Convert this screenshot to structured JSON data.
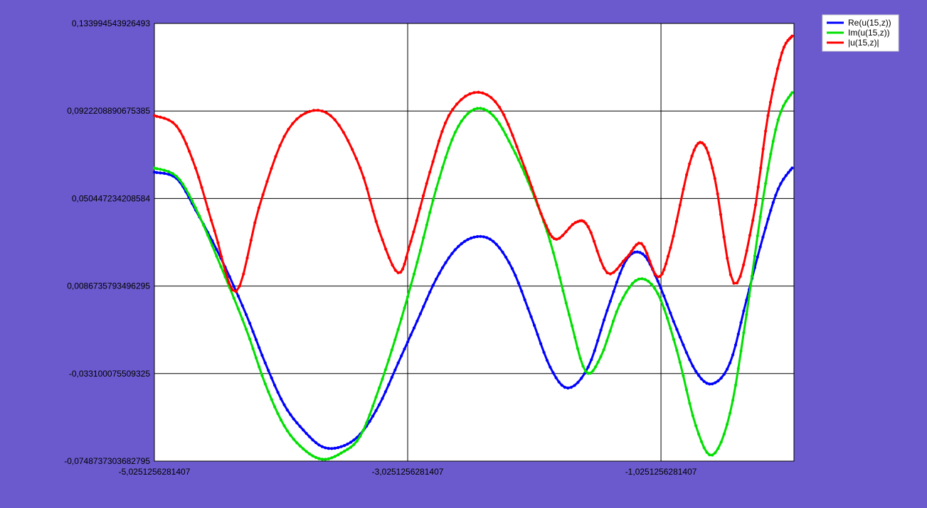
{
  "page": {
    "background": "#6a5acd"
  },
  "chart_data": {
    "type": "line",
    "title": "",
    "xlabel": "",
    "ylabel": "",
    "xlim": [
      -5.0251256281407,
      0.0248743718593
    ],
    "ylim": [
      -0.0748737303682795,
      0.133994543926493
    ],
    "x_ticks": [
      -5.0251256281407,
      -3.0251256281407,
      -1.0251256281407
    ],
    "x_tick_labels": [
      "-5,0251256281407",
      "-3,0251256281407",
      "-1,0251256281407"
    ],
    "y_ticks": [
      -0.0748737303682795,
      -0.033100075509325,
      0.0086735793496295,
      0.050447234208584,
      0.0922208890675385,
      0.133994543926493
    ],
    "y_tick_labels": [
      "-0,0748737303682795",
      "-0,033100075509325",
      "0,0086735793496295",
      "0,050447234208584",
      "0,0922208890675385",
      "0,133994543926493"
    ],
    "grid": true,
    "legend_position": "top-right",
    "plot_background": "#ffffff",
    "series": [
      {
        "name": "Re(u(15,z))",
        "color": "#0000ff",
        "points": [
          [
            -5.025,
            0.063
          ],
          [
            -4.85,
            0.06
          ],
          [
            -4.7,
            0.045
          ],
          [
            -4.5,
            0.022
          ],
          [
            -4.3,
            -0.005
          ],
          [
            -4.15,
            -0.028
          ],
          [
            -4.0,
            -0.048
          ],
          [
            -3.85,
            -0.06
          ],
          [
            -3.7,
            -0.068
          ],
          [
            -3.55,
            -0.068
          ],
          [
            -3.4,
            -0.062
          ],
          [
            -3.25,
            -0.048
          ],
          [
            -3.1,
            -0.028
          ],
          [
            -2.95,
            -0.008
          ],
          [
            -2.8,
            0.012
          ],
          [
            -2.65,
            0.026
          ],
          [
            -2.5,
            0.032
          ],
          [
            -2.35,
            0.03
          ],
          [
            -2.2,
            0.017
          ],
          [
            -2.05,
            -0.006
          ],
          [
            -1.9,
            -0.03
          ],
          [
            -1.76,
            -0.04
          ],
          [
            -1.6,
            -0.03
          ],
          [
            -1.45,
            -0.003
          ],
          [
            -1.3,
            0.021
          ],
          [
            -1.17,
            0.024
          ],
          [
            -1.05,
            0.011
          ],
          [
            -0.9,
            -0.012
          ],
          [
            -0.75,
            -0.032
          ],
          [
            -0.62,
            -0.038
          ],
          [
            -0.48,
            -0.028
          ],
          [
            -0.35,
            0.002
          ],
          [
            -0.22,
            0.032
          ],
          [
            -0.1,
            0.055
          ],
          [
            0.01,
            0.065
          ]
        ]
      },
      {
        "name": "Im(u(15,z))",
        "color": "#00e000",
        "points": [
          [
            -5.025,
            0.065
          ],
          [
            -4.85,
            0.061
          ],
          [
            -4.7,
            0.046
          ],
          [
            -4.5,
            0.018
          ],
          [
            -4.3,
            -0.012
          ],
          [
            -4.15,
            -0.038
          ],
          [
            -4.0,
            -0.058
          ],
          [
            -3.85,
            -0.069
          ],
          [
            -3.7,
            -0.074
          ],
          [
            -3.55,
            -0.071
          ],
          [
            -3.4,
            -0.063
          ],
          [
            -3.25,
            -0.04
          ],
          [
            -3.1,
            -0.012
          ],
          [
            -2.95,
            0.02
          ],
          [
            -2.8,
            0.055
          ],
          [
            -2.65,
            0.082
          ],
          [
            -2.5,
            0.093
          ],
          [
            -2.35,
            0.09
          ],
          [
            -2.2,
            0.075
          ],
          [
            -2.05,
            0.055
          ],
          [
            -1.9,
            0.03
          ],
          [
            -1.75,
            -0.005
          ],
          [
            -1.62,
            -0.032
          ],
          [
            -1.5,
            -0.025
          ],
          [
            -1.35,
            0.0
          ],
          [
            -1.2,
            0.012
          ],
          [
            -1.05,
            0.005
          ],
          [
            -0.9,
            -0.022
          ],
          [
            -0.75,
            -0.058
          ],
          [
            -0.62,
            -0.072
          ],
          [
            -0.48,
            -0.052
          ],
          [
            -0.35,
            -0.005
          ],
          [
            -0.22,
            0.05
          ],
          [
            -0.1,
            0.088
          ],
          [
            0.01,
            0.101
          ]
        ]
      },
      {
        "name": "|u(15,z)|",
        "color": "#ff0000",
        "points": [
          [
            -5.025,
            0.09
          ],
          [
            -4.85,
            0.085
          ],
          [
            -4.7,
            0.065
          ],
          [
            -4.55,
            0.035
          ],
          [
            -4.38,
            0.006
          ],
          [
            -4.2,
            0.046
          ],
          [
            -4.0,
            0.08
          ],
          [
            -3.8,
            0.092
          ],
          [
            -3.6,
            0.088
          ],
          [
            -3.4,
            0.065
          ],
          [
            -3.25,
            0.035
          ],
          [
            -3.1,
            0.015
          ],
          [
            -3.0,
            0.03
          ],
          [
            -2.85,
            0.063
          ],
          [
            -2.7,
            0.09
          ],
          [
            -2.5,
            0.101
          ],
          [
            -2.3,
            0.094
          ],
          [
            -2.1,
            0.065
          ],
          [
            -1.95,
            0.04
          ],
          [
            -1.85,
            0.031
          ],
          [
            -1.7,
            0.039
          ],
          [
            -1.6,
            0.037
          ],
          [
            -1.45,
            0.015
          ],
          [
            -1.3,
            0.022
          ],
          [
            -1.18,
            0.029
          ],
          [
            -1.05,
            0.013
          ],
          [
            -0.95,
            0.027
          ],
          [
            -0.8,
            0.067
          ],
          [
            -0.7,
            0.077
          ],
          [
            -0.6,
            0.06
          ],
          [
            -0.45,
            0.01
          ],
          [
            -0.3,
            0.04
          ],
          [
            -0.18,
            0.09
          ],
          [
            -0.07,
            0.12
          ],
          [
            0.01,
            0.128
          ]
        ]
      }
    ]
  }
}
